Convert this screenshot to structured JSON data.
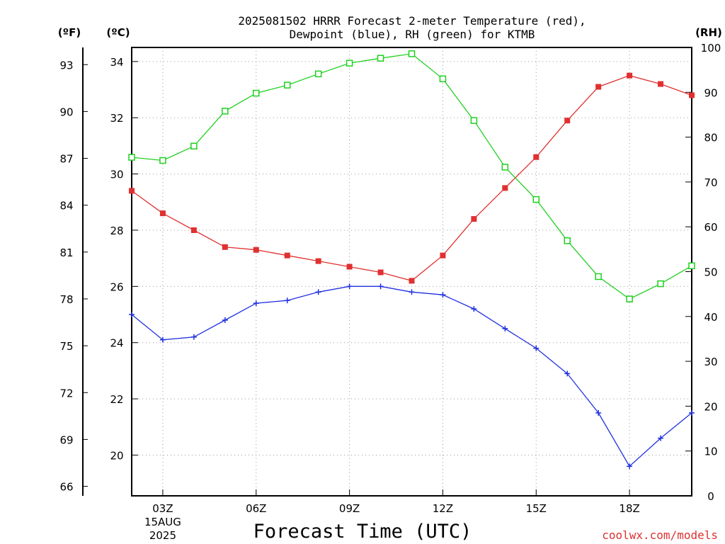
{
  "chart_data": {
    "type": "line",
    "title_line1": "2025081502 HRRR Forecast 2-meter Temperature (red),",
    "title_line2": "Dewpoint (blue), RH (green) for KTMB",
    "xlabel": "Forecast Time (UTC)",
    "credit": "coolwx.com/models",
    "units": {
      "fahrenheit": "(ºF)",
      "celsius": "(ºC)",
      "rh": "(RH)"
    },
    "x_hours": [
      2,
      3,
      4,
      5,
      6,
      7,
      8,
      9,
      10,
      11,
      12,
      13,
      14,
      15,
      16,
      17,
      18,
      19,
      20
    ],
    "xlim": [
      2,
      20
    ],
    "x_ticks": [
      {
        "hour": 3,
        "label": "03Z",
        "date": "15AUG",
        "year": "2025"
      },
      {
        "hour": 6,
        "label": "06Z"
      },
      {
        "hour": 9,
        "label": "09Z"
      },
      {
        "hour": 12,
        "label": "12Z"
      },
      {
        "hour": 15,
        "label": "15Z"
      },
      {
        "hour": 18,
        "label": "18Z"
      }
    ],
    "celsius_axis": {
      "ylim": [
        18.55,
        34.5
      ],
      "ticks": [
        "20",
        "22",
        "24",
        "26",
        "28",
        "30",
        "32",
        "34"
      ]
    },
    "fahrenheit_axis": {
      "ticks": [
        "66",
        "69",
        "72",
        "75",
        "78",
        "81",
        "84",
        "87",
        "90",
        "93"
      ]
    },
    "rh_axis": {
      "ylim": [
        0,
        100
      ],
      "ticks": [
        "0",
        "10",
        "20",
        "30",
        "40",
        "50",
        "60",
        "70",
        "80",
        "90",
        "100"
      ]
    },
    "grid": true,
    "series": [
      {
        "color": "#e03030",
        "marker": "filled-square",
        "axis": "celsius",
        "values": [
          29.4,
          28.6,
          28.0,
          27.4,
          27.3,
          27.1,
          26.9,
          26.7,
          26.5,
          26.2,
          27.1,
          28.4,
          29.5,
          30.6,
          31.9,
          33.1,
          33.5,
          33.2,
          32.8
        ]
      },
      {
        "color": "#2030e0",
        "marker": "plus",
        "axis": "celsius",
        "values": [
          25.0,
          24.1,
          24.2,
          24.8,
          25.4,
          25.5,
          25.8,
          26.0,
          26.0,
          25.8,
          25.7,
          25.2,
          24.5,
          23.8,
          22.9,
          21.5,
          19.6,
          20.6,
          21.5
        ]
      },
      {
        "color": "#20d020",
        "marker": "open-square",
        "axis": "rh",
        "values": [
          75.5,
          74.8,
          78.0,
          85.8,
          89.8,
          91.6,
          94.1,
          96.5,
          97.6,
          98.6,
          93.0,
          83.7,
          73.3,
          66.1,
          56.9,
          48.9,
          43.9,
          47.3,
          51.3
        ]
      }
    ]
  }
}
